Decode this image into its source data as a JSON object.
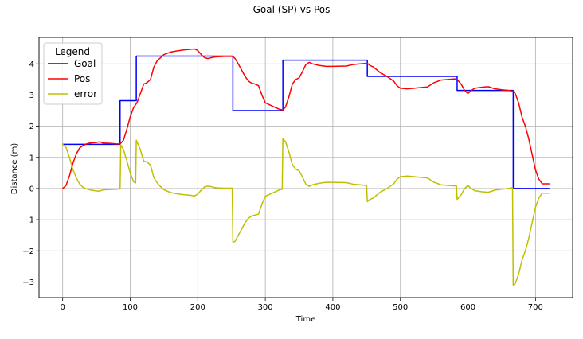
{
  "chart_data": {
    "type": "line",
    "title": "Goal (SP) vs Pos",
    "xlabel": "Time",
    "ylabel": "Distance (m)",
    "xlim": [
      -35,
      755
    ],
    "ylim": [
      -3.5,
      4.85
    ],
    "xticks": [
      0,
      100,
      200,
      300,
      400,
      500,
      600,
      700
    ],
    "yticks": [
      -3,
      -2,
      -1,
      0,
      1,
      2,
      3,
      4
    ],
    "grid": true,
    "legend": {
      "title": "Legend",
      "placement": "top-left"
    },
    "series": [
      {
        "name": "Goal",
        "color": "#0000ff",
        "points": [
          [
            0,
            1.42
          ],
          [
            85,
            1.42
          ],
          [
            85,
            2.82
          ],
          [
            109,
            2.82
          ],
          [
            109,
            4.25
          ],
          [
            252,
            4.25
          ],
          [
            252,
            2.5
          ],
          [
            326,
            2.5
          ],
          [
            326,
            4.12
          ],
          [
            451,
            4.12
          ],
          [
            451,
            3.6
          ],
          [
            584,
            3.6
          ],
          [
            584,
            3.15
          ],
          [
            667,
            3.15
          ],
          [
            667,
            0.0
          ],
          [
            720,
            0.0
          ]
        ]
      },
      {
        "name": "Pos",
        "color": "#ff0000",
        "points": [
          [
            0,
            0.0
          ],
          [
            5,
            0.1
          ],
          [
            10,
            0.4
          ],
          [
            15,
            0.8
          ],
          [
            20,
            1.1
          ],
          [
            25,
            1.3
          ],
          [
            30,
            1.38
          ],
          [
            35,
            1.43
          ],
          [
            40,
            1.46
          ],
          [
            45,
            1.47
          ],
          [
            50,
            1.48
          ],
          [
            55,
            1.5
          ],
          [
            60,
            1.46
          ],
          [
            70,
            1.45
          ],
          [
            80,
            1.43
          ],
          [
            85,
            1.43
          ],
          [
            90,
            1.55
          ],
          [
            95,
            1.9
          ],
          [
            100,
            2.3
          ],
          [
            105,
            2.6
          ],
          [
            110,
            2.75
          ],
          [
            115,
            3.05
          ],
          [
            120,
            3.35
          ],
          [
            125,
            3.4
          ],
          [
            130,
            3.5
          ],
          [
            135,
            3.9
          ],
          [
            140,
            4.1
          ],
          [
            145,
            4.2
          ],
          [
            150,
            4.3
          ],
          [
            160,
            4.38
          ],
          [
            170,
            4.42
          ],
          [
            180,
            4.45
          ],
          [
            190,
            4.47
          ],
          [
            195,
            4.48
          ],
          [
            200,
            4.43
          ],
          [
            205,
            4.3
          ],
          [
            210,
            4.2
          ],
          [
            215,
            4.17
          ],
          [
            220,
            4.2
          ],
          [
            225,
            4.22
          ],
          [
            230,
            4.23
          ],
          [
            240,
            4.24
          ],
          [
            252,
            4.24
          ],
          [
            255,
            4.18
          ],
          [
            260,
            4.0
          ],
          [
            265,
            3.8
          ],
          [
            270,
            3.6
          ],
          [
            275,
            3.45
          ],
          [
            280,
            3.38
          ],
          [
            285,
            3.35
          ],
          [
            290,
            3.3
          ],
          [
            295,
            3.0
          ],
          [
            300,
            2.75
          ],
          [
            310,
            2.65
          ],
          [
            320,
            2.55
          ],
          [
            326,
            2.52
          ],
          [
            330,
            2.62
          ],
          [
            335,
            2.95
          ],
          [
            340,
            3.35
          ],
          [
            345,
            3.5
          ],
          [
            350,
            3.55
          ],
          [
            355,
            3.75
          ],
          [
            360,
            3.98
          ],
          [
            365,
            4.05
          ],
          [
            370,
            4.0
          ],
          [
            380,
            3.95
          ],
          [
            390,
            3.92
          ],
          [
            400,
            3.92
          ],
          [
            420,
            3.93
          ],
          [
            430,
            3.98
          ],
          [
            440,
            4.0
          ],
          [
            451,
            4.02
          ],
          [
            455,
            3.95
          ],
          [
            460,
            3.9
          ],
          [
            470,
            3.72
          ],
          [
            480,
            3.6
          ],
          [
            490,
            3.45
          ],
          [
            495,
            3.3
          ],
          [
            500,
            3.22
          ],
          [
            510,
            3.2
          ],
          [
            520,
            3.22
          ],
          [
            530,
            3.24
          ],
          [
            540,
            3.26
          ],
          [
            550,
            3.4
          ],
          [
            560,
            3.48
          ],
          [
            570,
            3.5
          ],
          [
            580,
            3.52
          ],
          [
            584,
            3.5
          ],
          [
            590,
            3.35
          ],
          [
            595,
            3.15
          ],
          [
            600,
            3.05
          ],
          [
            605,
            3.15
          ],
          [
            610,
            3.22
          ],
          [
            620,
            3.25
          ],
          [
            630,
            3.27
          ],
          [
            640,
            3.2
          ],
          [
            650,
            3.17
          ],
          [
            660,
            3.15
          ],
          [
            667,
            3.12
          ],
          [
            670,
            3.05
          ],
          [
            675,
            2.75
          ],
          [
            680,
            2.3
          ],
          [
            685,
            2.0
          ],
          [
            690,
            1.6
          ],
          [
            695,
            1.1
          ],
          [
            700,
            0.6
          ],
          [
            705,
            0.3
          ],
          [
            710,
            0.15
          ],
          [
            715,
            0.15
          ],
          [
            720,
            0.15
          ]
        ]
      },
      {
        "name": "error",
        "color": "#bfbf00",
        "points": [
          [
            0,
            1.42
          ],
          [
            5,
            1.32
          ],
          [
            10,
            1.0
          ],
          [
            15,
            0.62
          ],
          [
            20,
            0.35
          ],
          [
            25,
            0.15
          ],
          [
            30,
            0.04
          ],
          [
            35,
            -0.01
          ],
          [
            40,
            -0.04
          ],
          [
            45,
            -0.06
          ],
          [
            50,
            -0.08
          ],
          [
            55,
            -0.08
          ],
          [
            60,
            -0.04
          ],
          [
            70,
            -0.03
          ],
          [
            80,
            -0.02
          ],
          [
            85,
            -0.01
          ],
          [
            86,
            1.4
          ],
          [
            90,
            1.25
          ],
          [
            95,
            0.9
          ],
          [
            100,
            0.5
          ],
          [
            105,
            0.22
          ],
          [
            108,
            0.18
          ],
          [
            109,
            1.55
          ],
          [
            115,
            1.25
          ],
          [
            120,
            0.88
          ],
          [
            125,
            0.85
          ],
          [
            130,
            0.75
          ],
          [
            135,
            0.35
          ],
          [
            140,
            0.18
          ],
          [
            145,
            0.06
          ],
          [
            150,
            -0.04
          ],
          [
            160,
            -0.13
          ],
          [
            170,
            -0.17
          ],
          [
            180,
            -0.2
          ],
          [
            190,
            -0.22
          ],
          [
            195,
            -0.24
          ],
          [
            200,
            -0.18
          ],
          [
            205,
            -0.05
          ],
          [
            210,
            0.05
          ],
          [
            215,
            0.08
          ],
          [
            220,
            0.06
          ],
          [
            225,
            0.03
          ],
          [
            230,
            0.02
          ],
          [
            240,
            0.01
          ],
          [
            251,
            0.01
          ],
          [
            252,
            -1.72
          ],
          [
            255,
            -1.7
          ],
          [
            260,
            -1.5
          ],
          [
            265,
            -1.3
          ],
          [
            270,
            -1.1
          ],
          [
            275,
            -0.95
          ],
          [
            280,
            -0.88
          ],
          [
            285,
            -0.85
          ],
          [
            290,
            -0.82
          ],
          [
            295,
            -0.5
          ],
          [
            300,
            -0.25
          ],
          [
            310,
            -0.15
          ],
          [
            320,
            -0.05
          ],
          [
            325,
            -0.02
          ],
          [
            326,
            1.6
          ],
          [
            330,
            1.5
          ],
          [
            335,
            1.17
          ],
          [
            340,
            0.77
          ],
          [
            345,
            0.62
          ],
          [
            350,
            0.57
          ],
          [
            355,
            0.37
          ],
          [
            360,
            0.14
          ],
          [
            365,
            0.07
          ],
          [
            370,
            0.12
          ],
          [
            380,
            0.17
          ],
          [
            390,
            0.2
          ],
          [
            400,
            0.2
          ],
          [
            420,
            0.19
          ],
          [
            430,
            0.14
          ],
          [
            440,
            0.12
          ],
          [
            450,
            0.1
          ],
          [
            451,
            -0.42
          ],
          [
            455,
            -0.35
          ],
          [
            460,
            -0.3
          ],
          [
            470,
            -0.12
          ],
          [
            480,
            0.0
          ],
          [
            490,
            0.15
          ],
          [
            495,
            0.3
          ],
          [
            500,
            0.38
          ],
          [
            510,
            0.4
          ],
          [
            520,
            0.38
          ],
          [
            530,
            0.36
          ],
          [
            540,
            0.34
          ],
          [
            550,
            0.2
          ],
          [
            560,
            0.12
          ],
          [
            570,
            0.1
          ],
          [
            583,
            0.08
          ],
          [
            584,
            -0.35
          ],
          [
            590,
            -0.2
          ],
          [
            595,
            0.0
          ],
          [
            600,
            0.1
          ],
          [
            605,
            0.0
          ],
          [
            610,
            -0.07
          ],
          [
            620,
            -0.1
          ],
          [
            630,
            -0.12
          ],
          [
            640,
            -0.05
          ],
          [
            650,
            -0.02
          ],
          [
            660,
            0.0
          ],
          [
            666,
            0.03
          ],
          [
            667,
            -3.1
          ],
          [
            670,
            -3.05
          ],
          [
            675,
            -2.75
          ],
          [
            680,
            -2.3
          ],
          [
            685,
            -2.0
          ],
          [
            690,
            -1.6
          ],
          [
            695,
            -1.1
          ],
          [
            700,
            -0.6
          ],
          [
            705,
            -0.3
          ],
          [
            710,
            -0.15
          ],
          [
            715,
            -0.15
          ],
          [
            720,
            -0.15
          ]
        ]
      }
    ]
  }
}
